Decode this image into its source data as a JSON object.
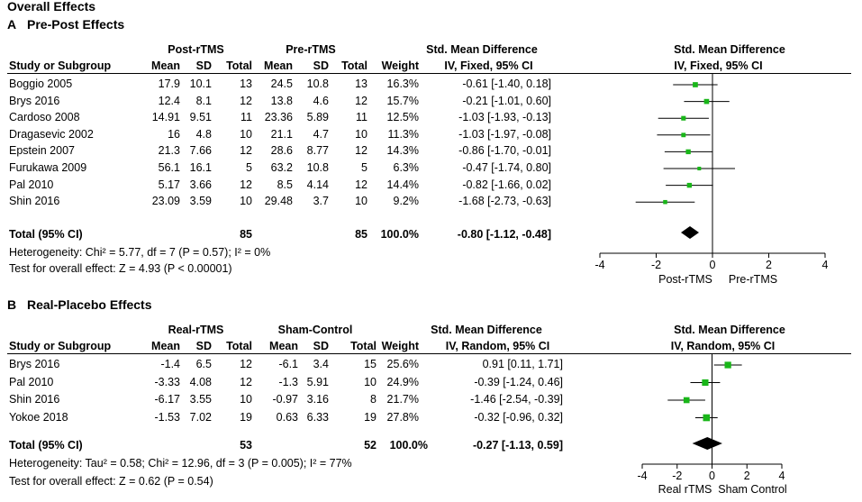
{
  "figure_title": "Overall Effects",
  "panels": [
    {
      "id": "A",
      "letter": "A",
      "title": "Pre-Post Effects",
      "group1": "Post-rTMS",
      "group2": "Pre-rTMS",
      "headers": [
        "Study or Subgroup",
        "Mean",
        "SD",
        "Total",
        "Mean",
        "SD",
        "Total",
        "Weight"
      ],
      "smd_title": "Std. Mean Difference",
      "smd_method": "IV, Fixed, 95% CI",
      "plot_title": "Std. Mean Difference",
      "plot_method": "IV, Fixed, 95% CI",
      "total_row": {
        "label": "Total (95% CI)",
        "total1": "85",
        "total2": "85",
        "weight": "100.0%",
        "ci_text": "-0.80 [-1.12, -0.48]"
      },
      "heterogeneity": "Heterogeneity: Chi² = 5.77, df = 7 (P = 0.57); I² = 0%",
      "overall_test": "Test for overall effect: Z = 4.93 (P < 0.00001)",
      "favours_left": "Post-rTMS",
      "favours_right": "Pre-rTMS"
    },
    {
      "id": "B",
      "letter": "B",
      "title": "Real-Placebo Effects",
      "group1": "Real-rTMS",
      "group2": "Sham-Control",
      "headers": [
        "Study or Subgroup",
        "Mean",
        "SD",
        "Total",
        "Mean",
        "SD",
        "Total",
        "Weight"
      ],
      "smd_title": "Std. Mean Difference",
      "smd_method": "IV, Random, 95% CI",
      "plot_title": "Std. Mean Difference",
      "plot_method": "IV, Random, 95% CI",
      "total_row": {
        "label": "Total (95% CI)",
        "total1": "53",
        "total2": "52",
        "weight": "100.0%",
        "ci_text": "-0.27 [-1.13, 0.59]"
      },
      "heterogeneity": "Heterogeneity: Tau² = 0.58; Chi² = 12.96, df = 3 (P = 0.005); I² = 77%",
      "overall_test": "Test for overall effect: Z = 0.62 (P = 0.54)",
      "favours_left": "Real rTMS",
      "favours_right": "Sham Control"
    }
  ],
  "chart_data": [
    {
      "type": "forest",
      "panel": "A",
      "title": "Pre-Post Effects",
      "measure": "Std. Mean Difference (IV, Fixed, 95% CI)",
      "xlim": [
        -4,
        4
      ],
      "ticks": [
        "-4",
        "-2",
        "0",
        "2",
        "4"
      ],
      "studies": [
        {
          "study": "Boggio 2005",
          "mean1": "17.9",
          "sd1": "10.1",
          "n1": "13",
          "mean2": "24.5",
          "sd2": "10.8",
          "n2": "13",
          "weight": "16.3%",
          "smd": -0.61,
          "lo": -1.4,
          "hi": 0.18,
          "ci_text": "-0.61 [-1.40, 0.18]"
        },
        {
          "study": "Brys 2016",
          "mean1": "12.4",
          "sd1": "8.1",
          "n1": "12",
          "mean2": "13.8",
          "sd2": "4.6",
          "n2": "12",
          "weight": "15.7%",
          "smd": -0.21,
          "lo": -1.01,
          "hi": 0.6,
          "ci_text": "-0.21 [-1.01, 0.60]"
        },
        {
          "study": "Cardoso 2008",
          "mean1": "14.91",
          "sd1": "9.51",
          "n1": "11",
          "mean2": "23.36",
          "sd2": "5.89",
          "n2": "11",
          "weight": "12.5%",
          "smd": -1.03,
          "lo": -1.93,
          "hi": -0.13,
          "ci_text": "-1.03 [-1.93, -0.13]"
        },
        {
          "study": "Dragasevic 2002",
          "mean1": "16",
          "sd1": "4.8",
          "n1": "10",
          "mean2": "21.1",
          "sd2": "4.7",
          "n2": "10",
          "weight": "11.3%",
          "smd": -1.03,
          "lo": -1.97,
          "hi": -0.08,
          "ci_text": "-1.03 [-1.97, -0.08]"
        },
        {
          "study": "Epstein 2007",
          "mean1": "21.3",
          "sd1": "7.66",
          "n1": "12",
          "mean2": "28.6",
          "sd2": "8.77",
          "n2": "12",
          "weight": "14.3%",
          "smd": -0.86,
          "lo": -1.7,
          "hi": -0.01,
          "ci_text": "-0.86 [-1.70, -0.01]"
        },
        {
          "study": "Furukawa 2009",
          "mean1": "56.1",
          "sd1": "16.1",
          "n1": "5",
          "mean2": "63.2",
          "sd2": "10.8",
          "n2": "5",
          "weight": "6.3%",
          "smd": -0.47,
          "lo": -1.74,
          "hi": 0.8,
          "ci_text": "-0.47 [-1.74, 0.80]"
        },
        {
          "study": "Pal 2010",
          "mean1": "5.17",
          "sd1": "3.66",
          "n1": "12",
          "mean2": "8.5",
          "sd2": "4.14",
          "n2": "12",
          "weight": "14.4%",
          "smd": -0.82,
          "lo": -1.66,
          "hi": 0.02,
          "ci_text": "-0.82 [-1.66, 0.02]"
        },
        {
          "study": "Shin 2016",
          "mean1": "23.09",
          "sd1": "3.59",
          "n1": "10",
          "mean2": "29.48",
          "sd2": "3.7",
          "n2": "10",
          "weight": "9.2%",
          "smd": -1.68,
          "lo": -2.73,
          "hi": -0.63,
          "ci_text": "-1.68 [-2.73, -0.63]"
        }
      ],
      "pooled": {
        "smd": -0.8,
        "lo": -1.12,
        "hi": -0.48
      },
      "marker_color": "#19b619"
    },
    {
      "type": "forest",
      "panel": "B",
      "title": "Real-Placebo Effects",
      "measure": "Std. Mean Difference (IV, Random, 95% CI)",
      "xlim": [
        -4,
        4
      ],
      "ticks": [
        "-4",
        "-2",
        "0",
        "2",
        "4"
      ],
      "studies": [
        {
          "study": "Brys 2016",
          "mean1": "-1.4",
          "sd1": "6.5",
          "n1": "12",
          "mean2": "-6.1",
          "sd2": "3.4",
          "n2": "15",
          "weight": "25.6%",
          "smd": 0.91,
          "lo": 0.11,
          "hi": 1.71,
          "ci_text": "0.91 [0.11, 1.71]"
        },
        {
          "study": "Pal 2010",
          "mean1": "-3.33",
          "sd1": "4.08",
          "n1": "12",
          "mean2": "-1.3",
          "sd2": "5.91",
          "n2": "10",
          "weight": "24.9%",
          "smd": -0.39,
          "lo": -1.24,
          "hi": 0.46,
          "ci_text": "-0.39 [-1.24, 0.46]"
        },
        {
          "study": "Shin 2016",
          "mean1": "-6.17",
          "sd1": "3.55",
          "n1": "10",
          "mean2": "-0.97",
          "sd2": "3.16",
          "n2": "8",
          "weight": "21.7%",
          "smd": -1.46,
          "lo": -2.54,
          "hi": -0.39,
          "ci_text": "-1.46 [-2.54, -0.39]"
        },
        {
          "study": "Yokoe 2018",
          "mean1": "-1.53",
          "sd1": "7.02",
          "n1": "19",
          "mean2": "0.63",
          "sd2": "6.33",
          "n2": "19",
          "weight": "27.8%",
          "smd": -0.32,
          "lo": -0.96,
          "hi": 0.32,
          "ci_text": "-0.32 [-0.96, 0.32]"
        }
      ],
      "pooled": {
        "smd": -0.27,
        "lo": -1.13,
        "hi": 0.59
      },
      "marker_color": "#19b619"
    }
  ]
}
